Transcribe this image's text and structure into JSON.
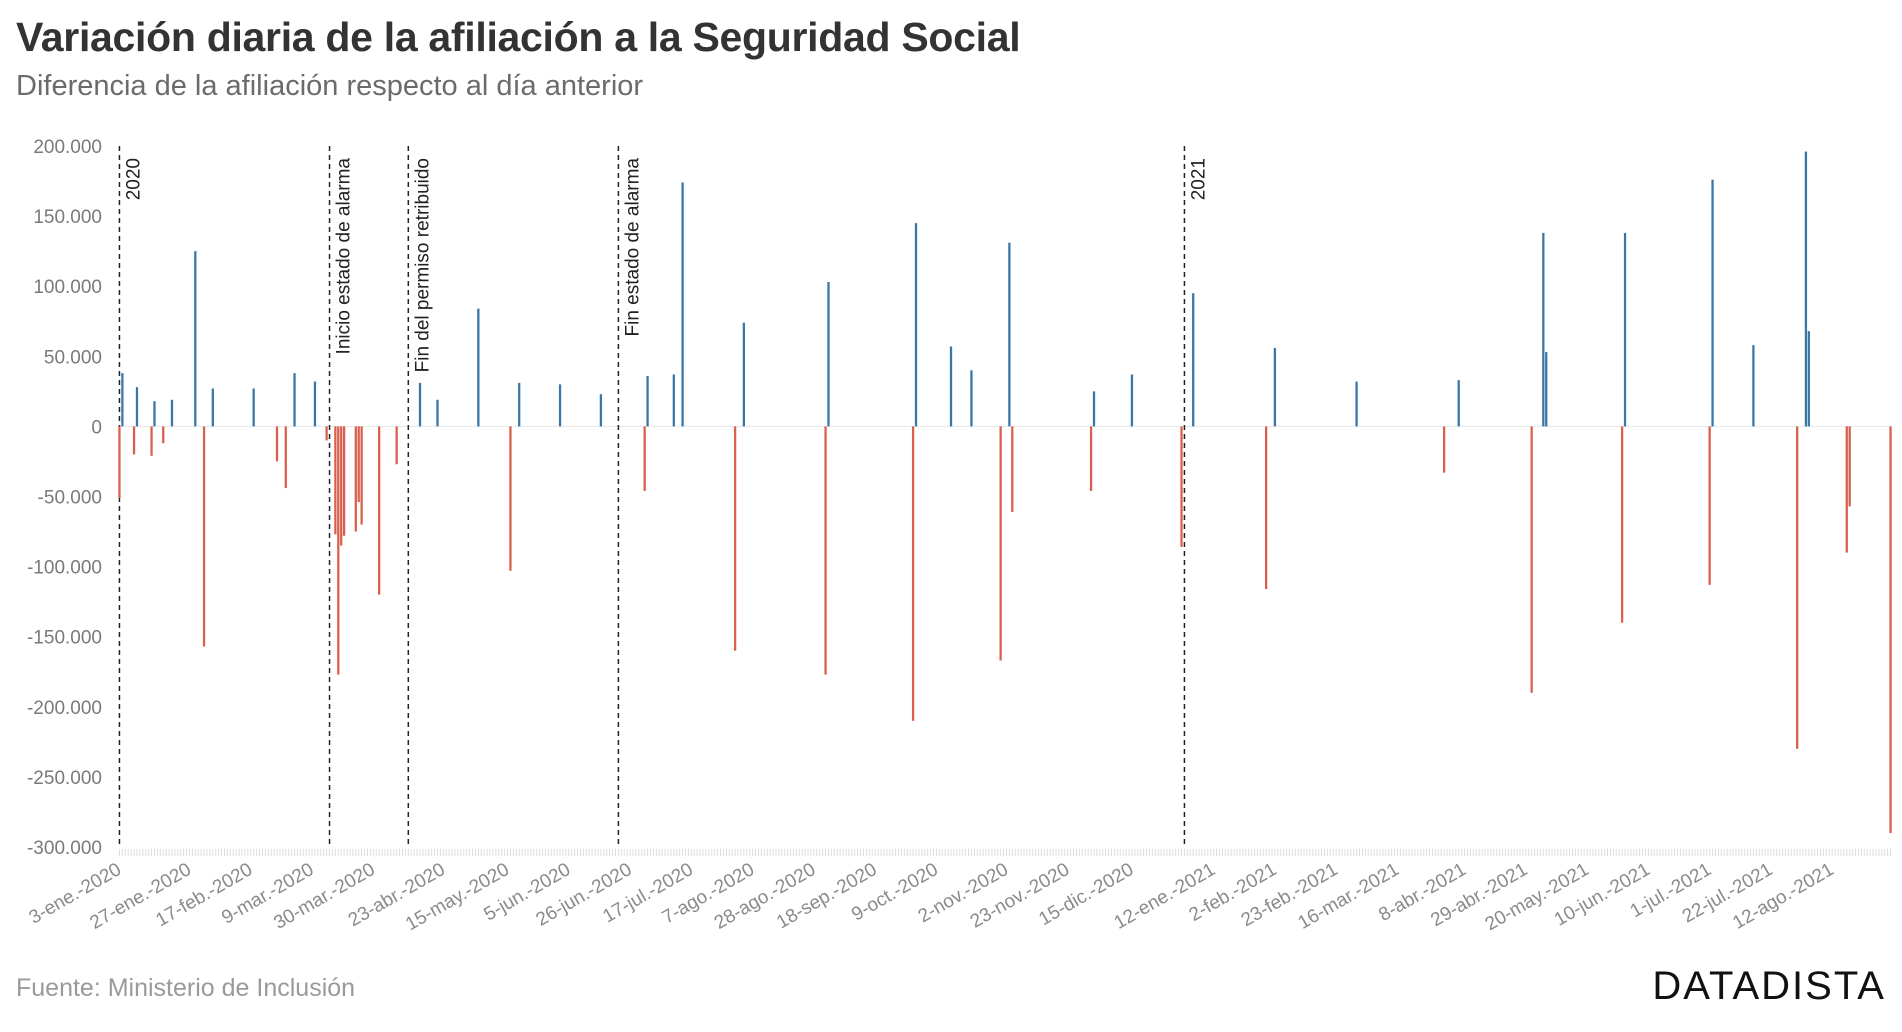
{
  "title": "Variación diaria de la afiliación a la Seguridad Social",
  "subtitle": "Diferencia de la afiliación respecto al día anterior",
  "source": "Fuente: Ministerio de Inclusión",
  "brand": "DATADISTA",
  "colors": {
    "positive": "#3a76a6",
    "negative": "#d9604c",
    "axis_text": "#7a7a7a",
    "event_line": "#222222"
  },
  "chart_data": {
    "type": "bar",
    "title": "Variación diaria de la afiliación a la Seguridad Social",
    "subtitle": "Diferencia de la afiliación respecto al día anterior",
    "xlabel": "",
    "ylabel": "",
    "x_type": "date",
    "ylim": [
      -300000,
      200000
    ],
    "yticks": [
      200000,
      150000,
      100000,
      50000,
      0,
      -50000,
      -100000,
      -150000,
      -200000,
      -250000,
      -300000
    ],
    "ytick_labels": [
      "200.000",
      "150.000",
      "100.000",
      "50.000",
      "0",
      "-50.000",
      "-100.000",
      "-150.000",
      "-200.000",
      "-250.000",
      "-300.000"
    ],
    "xticks": [
      {
        "date": "2020-01-03",
        "label": "3-ene.-2020"
      },
      {
        "date": "2020-01-27",
        "label": "27-ene.-2020"
      },
      {
        "date": "2020-02-17",
        "label": "17-feb.-2020"
      },
      {
        "date": "2020-03-09",
        "label": "9-mar.-2020"
      },
      {
        "date": "2020-03-30",
        "label": "30-mar.-2020"
      },
      {
        "date": "2020-04-23",
        "label": "23-abr.-2020"
      },
      {
        "date": "2020-05-15",
        "label": "15-may.-2020"
      },
      {
        "date": "2020-06-05",
        "label": "5-jun.-2020"
      },
      {
        "date": "2020-06-26",
        "label": "26-jun.-2020"
      },
      {
        "date": "2020-07-17",
        "label": "17-jul.-2020"
      },
      {
        "date": "2020-08-07",
        "label": "7-ago.-2020"
      },
      {
        "date": "2020-08-28",
        "label": "28-ago.-2020"
      },
      {
        "date": "2020-09-18",
        "label": "18-sep.-2020"
      },
      {
        "date": "2020-10-09",
        "label": "9-oct.-2020"
      },
      {
        "date": "2020-11-02",
        "label": "2-nov.-2020"
      },
      {
        "date": "2020-11-23",
        "label": "23-nov.-2020"
      },
      {
        "date": "2020-12-15",
        "label": "15-dic.-2020"
      },
      {
        "date": "2021-01-12",
        "label": "12-ene.-2021"
      },
      {
        "date": "2021-02-02",
        "label": "2-feb.-2021"
      },
      {
        "date": "2021-02-23",
        "label": "23-feb.-2021"
      },
      {
        "date": "2021-03-16",
        "label": "16-mar.-2021"
      },
      {
        "date": "2021-04-08",
        "label": "8-abr.-2021"
      },
      {
        "date": "2021-04-29",
        "label": "29-abr.-2021"
      },
      {
        "date": "2021-05-20",
        "label": "20-may.-2021"
      },
      {
        "date": "2021-06-10",
        "label": "10-jun.-2021"
      },
      {
        "date": "2021-07-01",
        "label": "1-jul.-2021"
      },
      {
        "date": "2021-07-22",
        "label": "22-jul.-2021"
      },
      {
        "date": "2021-08-12",
        "label": "12-ago.-2021"
      }
    ],
    "events": [
      {
        "date": "2020-01-02",
        "label": "2020"
      },
      {
        "date": "2020-03-14",
        "label": "Inicio estado de alarma"
      },
      {
        "date": "2020-04-10",
        "label": "Fin del permiso retribuido"
      },
      {
        "date": "2020-06-21",
        "label": "Fin estado de alarma"
      },
      {
        "date": "2021-01-01",
        "label": "2021"
      }
    ],
    "series": [
      {
        "values": [
          {
            "x": "2020-01-02",
            "y": -51000
          },
          {
            "x": "2020-01-03",
            "y": 38000
          },
          {
            "x": "2020-01-07",
            "y": -20000
          },
          {
            "x": "2020-01-08",
            "y": 28000
          },
          {
            "x": "2020-01-13",
            "y": -21000
          },
          {
            "x": "2020-01-14",
            "y": 18000
          },
          {
            "x": "2020-01-17",
            "y": -12000
          },
          {
            "x": "2020-01-20",
            "y": 19000
          },
          {
            "x": "2020-01-28",
            "y": 125000
          },
          {
            "x": "2020-01-31",
            "y": -157000
          },
          {
            "x": "2020-02-03",
            "y": 27000
          },
          {
            "x": "2020-02-17",
            "y": 27000
          },
          {
            "x": "2020-02-25",
            "y": -25000
          },
          {
            "x": "2020-02-28",
            "y": -44000
          },
          {
            "x": "2020-03-02",
            "y": 38000
          },
          {
            "x": "2020-03-09",
            "y": 32000
          },
          {
            "x": "2020-03-13",
            "y": -10000
          },
          {
            "x": "2020-03-16",
            "y": -77000
          },
          {
            "x": "2020-03-17",
            "y": -177000
          },
          {
            "x": "2020-03-18",
            "y": -85000
          },
          {
            "x": "2020-03-19",
            "y": -78000
          },
          {
            "x": "2020-03-23",
            "y": -75000
          },
          {
            "x": "2020-03-24",
            "y": -54000
          },
          {
            "x": "2020-03-25",
            "y": -70000
          },
          {
            "x": "2020-03-31",
            "y": -120000
          },
          {
            "x": "2020-04-06",
            "y": -27000
          },
          {
            "x": "2020-04-14",
            "y": 31000
          },
          {
            "x": "2020-04-20",
            "y": 19000
          },
          {
            "x": "2020-05-04",
            "y": 84000
          },
          {
            "x": "2020-05-15",
            "y": -103000
          },
          {
            "x": "2020-05-18",
            "y": 31000
          },
          {
            "x": "2020-06-01",
            "y": 30000
          },
          {
            "x": "2020-06-15",
            "y": 23000
          },
          {
            "x": "2020-06-30",
            "y": -46000
          },
          {
            "x": "2020-07-01",
            "y": 36000
          },
          {
            "x": "2020-07-10",
            "y": 37000
          },
          {
            "x": "2020-07-13",
            "y": 174000
          },
          {
            "x": "2020-07-31",
            "y": -160000
          },
          {
            "x": "2020-08-03",
            "y": 74000
          },
          {
            "x": "2020-08-31",
            "y": -177000
          },
          {
            "x": "2020-09-01",
            "y": 103000
          },
          {
            "x": "2020-09-30",
            "y": -210000
          },
          {
            "x": "2020-10-01",
            "y": 145000
          },
          {
            "x": "2020-10-13",
            "y": 57000
          },
          {
            "x": "2020-10-20",
            "y": 40000
          },
          {
            "x": "2020-10-30",
            "y": -167000
          },
          {
            "x": "2020-11-02",
            "y": 131000
          },
          {
            "x": "2020-11-03",
            "y": -61000
          },
          {
            "x": "2020-11-30",
            "y": -46000
          },
          {
            "x": "2020-12-01",
            "y": 25000
          },
          {
            "x": "2020-12-14",
            "y": 37000
          },
          {
            "x": "2020-12-31",
            "y": -86000
          },
          {
            "x": "2021-01-04",
            "y": 95000
          },
          {
            "x": "2021-01-29",
            "y": -116000
          },
          {
            "x": "2021-02-01",
            "y": 56000
          },
          {
            "x": "2021-03-01",
            "y": 32000
          },
          {
            "x": "2021-03-31",
            "y": -33000
          },
          {
            "x": "2021-04-05",
            "y": 33000
          },
          {
            "x": "2021-04-30",
            "y": -190000
          },
          {
            "x": "2021-05-04",
            "y": 138000
          },
          {
            "x": "2021-05-05",
            "y": 53000
          },
          {
            "x": "2021-05-31",
            "y": -140000
          },
          {
            "x": "2021-06-01",
            "y": 138000
          },
          {
            "x": "2021-06-30",
            "y": -113000
          },
          {
            "x": "2021-07-01",
            "y": 176000
          },
          {
            "x": "2021-07-15",
            "y": 58000
          },
          {
            "x": "2021-07-30",
            "y": -230000
          },
          {
            "x": "2021-08-02",
            "y": 196000
          },
          {
            "x": "2021-08-03",
            "y": 68000
          },
          {
            "x": "2021-08-16",
            "y": -90000
          },
          {
            "x": "2021-08-17",
            "y": -57000
          },
          {
            "x": "2021-08-31",
            "y": -290000
          }
        ]
      }
    ]
  }
}
